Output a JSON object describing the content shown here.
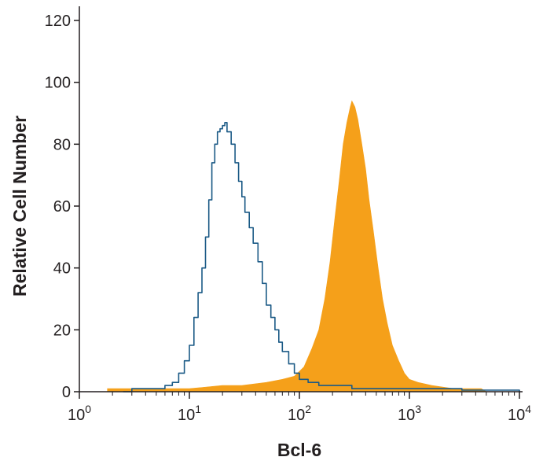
{
  "chart_data": {
    "type": "area",
    "title": "",
    "xlabel": "Bcl-6",
    "ylabel": "Relative Cell Number",
    "x_scale": "log",
    "xlim": [
      1,
      10000
    ],
    "ylim": [
      0,
      120
    ],
    "grid": false,
    "x_ticks": [
      {
        "value": 1,
        "base": "10",
        "exp": "0"
      },
      {
        "value": 10,
        "base": "10",
        "exp": "1"
      },
      {
        "value": 100,
        "base": "10",
        "exp": "2"
      },
      {
        "value": 1000,
        "base": "10",
        "exp": "3"
      },
      {
        "value": 10000,
        "base": "10",
        "exp": "4"
      }
    ],
    "y_ticks": [
      0,
      20,
      40,
      60,
      80,
      100,
      120
    ],
    "series": [
      {
        "style": "outline",
        "color": "#1b5a86",
        "points": [
          [
            2.5,
            0
          ],
          [
            3,
            1
          ],
          [
            4,
            1
          ],
          [
            5,
            1
          ],
          [
            6,
            2
          ],
          [
            7,
            3
          ],
          [
            8,
            6
          ],
          [
            9,
            10
          ],
          [
            10,
            15
          ],
          [
            11,
            24
          ],
          [
            12,
            32
          ],
          [
            13,
            40
          ],
          [
            14,
            50
          ],
          [
            15,
            62
          ],
          [
            16,
            74
          ],
          [
            17,
            80
          ],
          [
            18,
            84
          ],
          [
            19,
            85
          ],
          [
            20,
            86
          ],
          [
            21,
            87
          ],
          [
            22,
            84
          ],
          [
            24,
            80
          ],
          [
            26,
            74
          ],
          [
            28,
            68
          ],
          [
            30,
            63
          ],
          [
            32,
            58
          ],
          [
            35,
            53
          ],
          [
            38,
            48
          ],
          [
            42,
            42
          ],
          [
            46,
            35
          ],
          [
            50,
            28
          ],
          [
            55,
            24
          ],
          [
            60,
            20
          ],
          [
            65,
            16
          ],
          [
            70,
            13
          ],
          [
            80,
            9
          ],
          [
            90,
            6
          ],
          [
            100,
            4
          ],
          [
            120,
            3
          ],
          [
            150,
            2
          ],
          [
            200,
            2
          ],
          [
            300,
            1
          ],
          [
            500,
            1
          ],
          [
            1000,
            1
          ],
          [
            3000,
            0.5
          ],
          [
            10000,
            0
          ]
        ]
      },
      {
        "style": "filled",
        "color": "#f5a01a",
        "points": [
          [
            1.8,
            1
          ],
          [
            3,
            1
          ],
          [
            5,
            1
          ],
          [
            10,
            1
          ],
          [
            20,
            2
          ],
          [
            30,
            2
          ],
          [
            50,
            3
          ],
          [
            70,
            4
          ],
          [
            90,
            5
          ],
          [
            110,
            8
          ],
          [
            130,
            14
          ],
          [
            150,
            20
          ],
          [
            170,
            30
          ],
          [
            190,
            42
          ],
          [
            210,
            56
          ],
          [
            230,
            68
          ],
          [
            250,
            80
          ],
          [
            270,
            87
          ],
          [
            290,
            92
          ],
          [
            300,
            94
          ],
          [
            320,
            92
          ],
          [
            340,
            88
          ],
          [
            370,
            80
          ],
          [
            400,
            72
          ],
          [
            430,
            62
          ],
          [
            470,
            52
          ],
          [
            520,
            40
          ],
          [
            570,
            30
          ],
          [
            630,
            22
          ],
          [
            700,
            15
          ],
          [
            800,
            10
          ],
          [
            900,
            6
          ],
          [
            1000,
            4
          ],
          [
            1200,
            3
          ],
          [
            1600,
            2
          ],
          [
            2500,
            1
          ],
          [
            4500,
            1
          ],
          [
            5000,
            0
          ]
        ]
      }
    ]
  }
}
